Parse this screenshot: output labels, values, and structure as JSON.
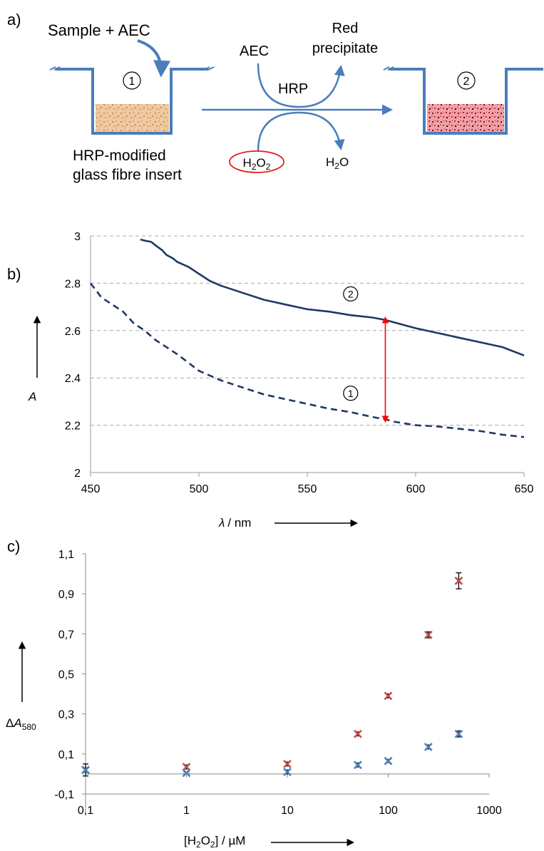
{
  "panel_labels": {
    "a": "a)",
    "b": "b)",
    "c": "c)"
  },
  "scheme": {
    "sample_label": "Sample + AEC",
    "insert_label_line1": "HRP-modified",
    "insert_label_line2": "glass fibre insert",
    "aec_label": "AEC",
    "product_line1": "Red",
    "product_line2": "precipitate",
    "enzyme_label": "HRP",
    "h2o2_label": "H2O2",
    "water_label": "H2O",
    "well1_marker": "1",
    "well2_marker": "2",
    "colors": {
      "line": "#4a7ebb",
      "well1_fill": "#e8b98a",
      "well2_fill": "#d9404a",
      "h2o2_ring": "#e02020"
    }
  },
  "chart_data": [
    {
      "type": "line",
      "panel": "b",
      "xlabel_symbol": "λ",
      "xlabel_unit": "/ nm",
      "ylabel": "A",
      "xlim": [
        450,
        650
      ],
      "ylim": [
        2,
        3
      ],
      "x_ticks": [
        450,
        500,
        550,
        600,
        650
      ],
      "y_ticks": [
        "2",
        "2.2",
        "2.4",
        "2.6",
        "2.8",
        "3"
      ],
      "grid": "horizontal dashed",
      "series": [
        {
          "name": "2",
          "style": "solid",
          "color": "#1f3864",
          "x": [
            473,
            475,
            478,
            480,
            483,
            485,
            488,
            490,
            495,
            500,
            505,
            510,
            520,
            530,
            540,
            550,
            560,
            570,
            580,
            586,
            590,
            600,
            610,
            620,
            630,
            640,
            650
          ],
          "y": [
            2.985,
            2.98,
            2.975,
            2.96,
            2.94,
            2.92,
            2.905,
            2.89,
            2.87,
            2.84,
            2.81,
            2.79,
            2.76,
            2.73,
            2.71,
            2.69,
            2.68,
            2.665,
            2.655,
            2.645,
            2.635,
            2.61,
            2.59,
            2.57,
            2.55,
            2.53,
            2.495
          ]
        },
        {
          "name": "1",
          "style": "dashed",
          "color": "#1f3864",
          "x": [
            450,
            455,
            460,
            465,
            470,
            475,
            480,
            490,
            500,
            510,
            520,
            530,
            540,
            550,
            560,
            570,
            580,
            586,
            590,
            600,
            610,
            620,
            630,
            640,
            650
          ],
          "y": [
            2.8,
            2.74,
            2.71,
            2.68,
            2.63,
            2.6,
            2.56,
            2.5,
            2.43,
            2.39,
            2.36,
            2.33,
            2.31,
            2.29,
            2.27,
            2.255,
            2.235,
            2.225,
            2.215,
            2.2,
            2.195,
            2.185,
            2.175,
            2.16,
            2.15
          ]
        }
      ],
      "annotations": [
        {
          "text": "2",
          "x": 570,
          "y": 2.755
        },
        {
          "text": "1",
          "x": 570,
          "y": 2.335
        }
      ],
      "difference_arrow": {
        "x": 586,
        "y_from": 2.225,
        "y_to": 2.645,
        "color": "#ff0000"
      }
    },
    {
      "type": "scatter",
      "panel": "c",
      "xlabel": "[H2O2] / µM",
      "ylabel_delta": "Δ",
      "ylabel_symbol": "A",
      "ylabel_sub": "580",
      "xscale": "log",
      "xlim": [
        0.1,
        1000
      ],
      "ylim": [
        -0.1,
        1.1
      ],
      "x_ticks": [
        "0,1",
        "1",
        "10",
        "100",
        "1000"
      ],
      "y_ticks": [
        "-0,1",
        "0,1",
        "0,3",
        "0,5",
        "0,7",
        "0,9",
        "1,1"
      ],
      "series": [
        {
          "name": "",
          "color": "#c0504d",
          "marker": "x",
          "x": [
            0.1,
            1,
            10,
            50,
            100,
            250,
            500
          ],
          "y": [
            0.02,
            0.035,
            0.05,
            0.2,
            0.39,
            0.695,
            0.965
          ],
          "error": [
            0.01,
            0.01,
            0.01,
            0.01,
            0.01,
            0.015,
            0.04
          ]
        },
        {
          "name": "",
          "color": "#4f81bd",
          "marker": "x",
          "x": [
            0.1,
            1,
            10,
            50,
            100,
            250,
            500
          ],
          "y": [
            0.02,
            0.005,
            0.01,
            0.045,
            0.065,
            0.135,
            0.2
          ],
          "error": [
            0.03,
            0.005,
            0.01,
            0.01,
            0.008,
            0.01,
            0.015
          ]
        }
      ]
    }
  ]
}
